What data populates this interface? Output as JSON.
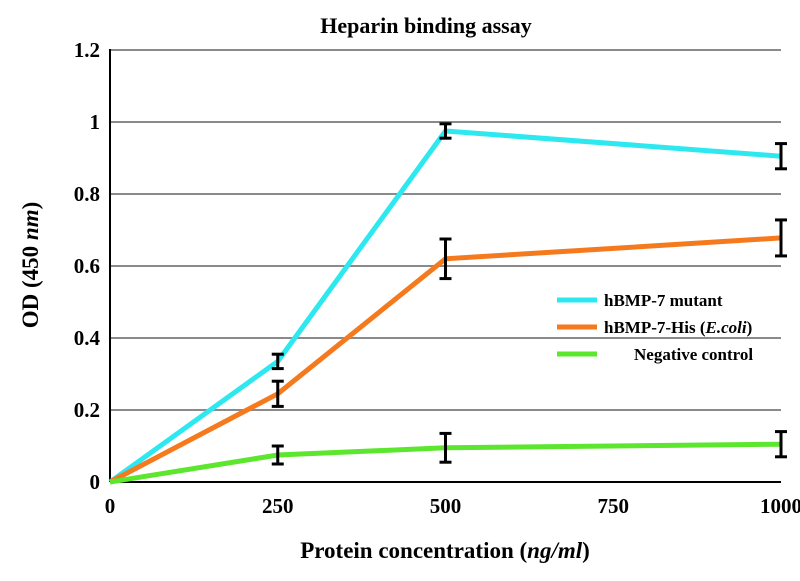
{
  "chart_data": {
    "type": "line",
    "title": "Heparin binding assay",
    "xlabel": {
      "prefix": "Protein concentration (",
      "italic": "ng/ml",
      "suffix": ")"
    },
    "ylabel": {
      "prefix": "OD (450 ",
      "italic": "nm",
      "suffix": ")"
    },
    "x": [
      0,
      250,
      500,
      1000
    ],
    "xlim": [
      0,
      1000
    ],
    "ylim": [
      0,
      1.2
    ],
    "xticks": [
      0,
      250,
      500,
      750,
      1000
    ],
    "xtick_labels": [
      "0",
      "250",
      "500",
      "750",
      "1000"
    ],
    "yticks": [
      0,
      0.2,
      0.4,
      0.6,
      0.8,
      1.0,
      1.2
    ],
    "ytick_labels": [
      "0",
      "0.2",
      "0.4",
      "0.6",
      "0.8",
      "1",
      "1.2"
    ],
    "grid": "horizontal",
    "legend_position": "right-middle",
    "series": [
      {
        "name": "hBMP-7 mutant",
        "legend": {
          "prefix": "hBMP-7 mutant",
          "italic": "",
          "suffix": ""
        },
        "color": "#2ee8f0",
        "points": [
          {
            "x": 0,
            "y": 0.0
          },
          {
            "x": 250,
            "y": 0.335,
            "err": 0.02
          },
          {
            "x": 500,
            "y": 0.975,
            "err": 0.02
          },
          {
            "x": 1000,
            "y": 0.905,
            "err": 0.035
          }
        ]
      },
      {
        "name": "hBMP-7-His (E.coli)",
        "legend": {
          "prefix": "hBMP-7-His (",
          "italic": "E.coli",
          "suffix": ")"
        },
        "color": "#f57a1e",
        "points": [
          {
            "x": 0,
            "y": 0.0
          },
          {
            "x": 250,
            "y": 0.245,
            "err": 0.035
          },
          {
            "x": 500,
            "y": 0.62,
            "err": 0.055
          },
          {
            "x": 1000,
            "y": 0.678,
            "err": 0.05
          }
        ]
      },
      {
        "name": "Negative control",
        "legend": {
          "prefix": "Negative control",
          "italic": "",
          "suffix": ""
        },
        "color": "#5ce62e",
        "points": [
          {
            "x": 0,
            "y": 0.0
          },
          {
            "x": 250,
            "y": 0.075,
            "err": 0.025
          },
          {
            "x": 500,
            "y": 0.095,
            "err": 0.04
          },
          {
            "x": 1000,
            "y": 0.105,
            "err": 0.035
          }
        ]
      }
    ]
  }
}
